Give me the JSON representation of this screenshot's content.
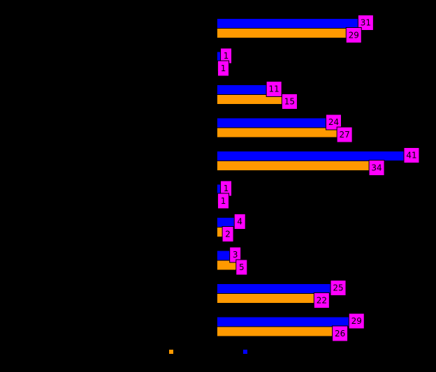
{
  "chart_data": {
    "type": "bar",
    "orientation": "horizontal",
    "categories": [
      "",
      "",
      "",
      "",
      "",
      "",
      "",
      "",
      "",
      ""
    ],
    "series": [
      {
        "name": "",
        "color": "#0000ff",
        "values": [
          31,
          1,
          11,
          24,
          41,
          1,
          4,
          3,
          25,
          29
        ]
      },
      {
        "name": "",
        "color": "#ff9900",
        "values": [
          29,
          1,
          15,
          27,
          34,
          1,
          2,
          5,
          22,
          26
        ]
      }
    ],
    "xlim": [
      0,
      41
    ],
    "grid": false,
    "legend_position": "bottom",
    "background_color": "#000000",
    "data_label_color": "#ff00ff"
  }
}
